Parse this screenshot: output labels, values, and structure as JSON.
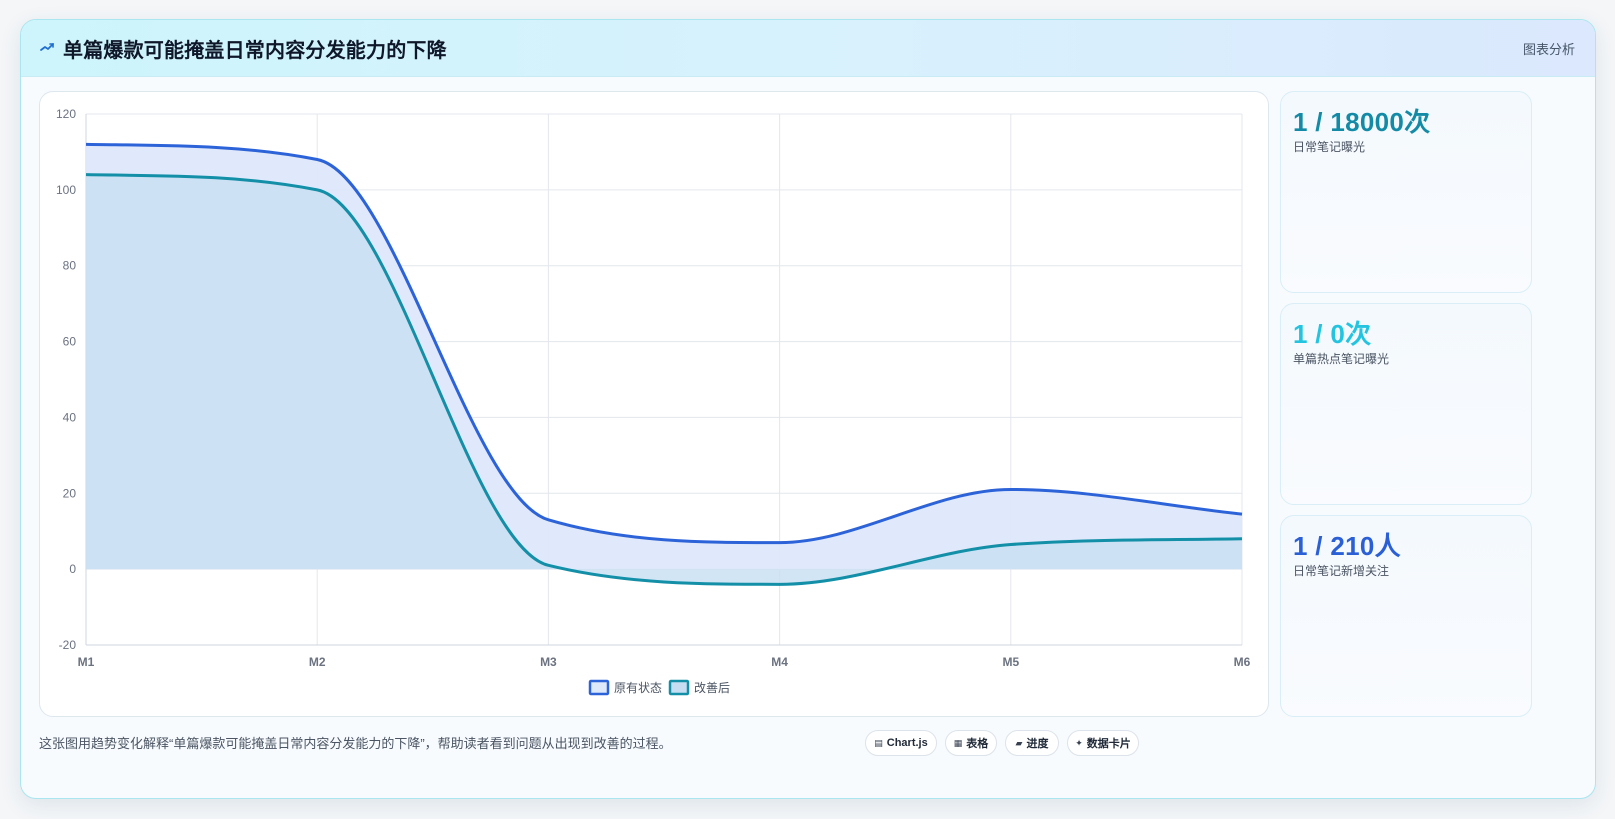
{
  "header": {
    "title": "单篇爆款可能掩盖日常内容分发能力的下降",
    "tag": "图表分析"
  },
  "chart_data": {
    "type": "line",
    "categories": [
      "M1",
      "M2",
      "M3",
      "M4",
      "M5",
      "M6"
    ],
    "series": [
      {
        "name": "原有状态",
        "color": "#2d63d8",
        "fill": "#dde8fb",
        "values": [
          112,
          108,
          13,
          7,
          21,
          14.5
        ]
      },
      {
        "name": "改善后",
        "color": "#138fa8",
        "fill": "#c7def2",
        "values": [
          104,
          100,
          1,
          -4,
          6.5,
          8
        ]
      }
    ],
    "ylim": [
      -20,
      120
    ],
    "yticks": [
      -20,
      0,
      20,
      40,
      60,
      80,
      100,
      120
    ],
    "grid": true,
    "legend_position": "bottom"
  },
  "stats": [
    {
      "value": "1 / 18000次",
      "label": "日常笔记曝光",
      "color": "#148ba6"
    },
    {
      "value": "1 / 0次",
      "label": "单篇热点笔记曝光",
      "color": "#22c4e0"
    },
    {
      "value": "1 / 210人",
      "label": "日常笔记新增关注",
      "color": "#2a5fd6"
    }
  ],
  "footer": {
    "description": "这张图用趋势变化解释“单篇爆款可能掩盖日常内容分发能力的下降”，帮助读者看到问题从出现到改善的过程。",
    "chips": [
      {
        "icon": "▤",
        "label": "Chart.js"
      },
      {
        "icon": "▦",
        "label": "表格"
      },
      {
        "icon": "▰",
        "label": "进度"
      },
      {
        "icon": "✦",
        "label": "数据卡片"
      }
    ]
  }
}
